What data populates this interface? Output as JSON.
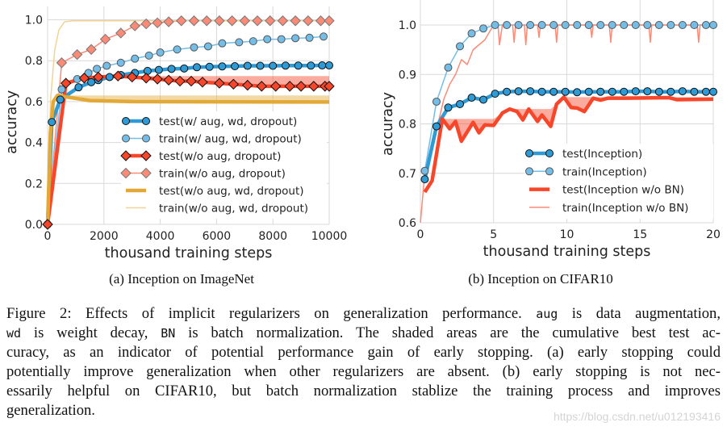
{
  "colors": {
    "blue": "#2e9bd6",
    "light_blue": "#74bde6",
    "red": "#f8462a",
    "salmon": "#fb8a76",
    "gold": "#e3a937",
    "light_gold": "#f3d394",
    "grid": "#d9d9d9"
  },
  "chart_data": [
    {
      "type": "line",
      "subcaption": "(a) Inception on ImageNet",
      "xlabel": "thousand training steps",
      "ylabel": "accuracy",
      "xlim": [
        0,
        10000
      ],
      "ylim": [
        0,
        1.0
      ],
      "xticks": [
        "0",
        "2000",
        "4000",
        "6000",
        "8000",
        "10000"
      ],
      "yticks": [
        "0.0",
        "0.2",
        "0.4",
        "0.6",
        "0.8",
        "1.0"
      ],
      "grid": true,
      "legend_position": "lower-right",
      "series": [
        {
          "name": "test(w/ aug, wd, dropout)",
          "color": "blue",
          "width": 4.5,
          "marker": "circle",
          "shade_cumulative_best": false,
          "x": [
            0,
            150,
            450,
            1100,
            1550,
            1800,
            2200,
            2600,
            3100,
            3550,
            3950,
            4400,
            4850,
            5300,
            5750,
            6200,
            6650,
            7100,
            7550,
            8000,
            8450,
            8900,
            9350,
            9750,
            10000
          ],
          "y": [
            0,
            0.5,
            0.61,
            0.67,
            0.695,
            0.705,
            0.72,
            0.73,
            0.74,
            0.75,
            0.755,
            0.76,
            0.762,
            0.768,
            0.77,
            0.772,
            0.773,
            0.775,
            0.775,
            0.775,
            0.776,
            0.776,
            0.776,
            0.777,
            0.777
          ]
        },
        {
          "name": "train(w/ aug, wd, dropout)",
          "color": "light_blue",
          "width": 1.5,
          "marker": "circle",
          "shade_cumulative_best": false,
          "x": [
            0,
            500,
            1050,
            1450,
            1750,
            2100,
            2600,
            3100,
            3600,
            4000,
            4600,
            5200,
            5700,
            6200,
            6800,
            7300,
            7800,
            8300,
            8800,
            9300,
            9800
          ],
          "y": [
            0,
            0.66,
            0.71,
            0.74,
            0.76,
            0.775,
            0.79,
            0.81,
            0.825,
            0.84,
            0.855,
            0.865,
            0.87,
            0.885,
            0.89,
            0.895,
            0.905,
            0.905,
            0.91,
            0.912,
            0.918
          ]
        },
        {
          "name": "test(w/o aug, dropout)",
          "color": "red",
          "width": 4.5,
          "marker": "diamond",
          "shade_cumulative_best": true,
          "x": [
            0,
            650,
            1300,
            1800,
            2500,
            3000,
            3500,
            3900,
            4300,
            4700,
            5100,
            5500,
            6100,
            6600,
            7100,
            7600,
            8100,
            8600,
            9000,
            9450,
            9850,
            10000
          ],
          "y": [
            0,
            0.69,
            0.715,
            0.72,
            0.725,
            0.72,
            0.715,
            0.71,
            0.705,
            0.7,
            0.7,
            0.695,
            0.69,
            0.685,
            0.68,
            0.675,
            0.675,
            0.675,
            0.675,
            0.675,
            0.675,
            0.675
          ]
        },
        {
          "name": "train(w/o aug, dropout)",
          "color": "salmon",
          "width": 1.5,
          "marker": "diamond",
          "shade_cumulative_best": false,
          "x": [
            0,
            500,
            1050,
            1550,
            2050,
            2600,
            3100,
            3500,
            3900,
            4300,
            4750,
            5200,
            5650,
            6100,
            6550,
            7000,
            7450,
            7900,
            8350,
            8800,
            9250,
            9700,
            10000
          ],
          "y": [
            0,
            0.79,
            0.83,
            0.855,
            0.905,
            0.935,
            0.97,
            0.98,
            0.985,
            0.99,
            0.995,
            0.995,
            0.995,
            0.995,
            0.995,
            0.995,
            0.995,
            0.995,
            0.995,
            0.995,
            0.995,
            0.995,
            0.995
          ]
        },
        {
          "name": "test(w/o aug, wd, dropout)",
          "color": "gold",
          "width": 4.5,
          "marker": "none",
          "shade_cumulative_best": true,
          "x": [
            0,
            100,
            200,
            350,
            800,
            1500,
            3000,
            10000
          ],
          "y": [
            0,
            0.45,
            0.6,
            0.63,
            0.62,
            0.605,
            0.6,
            0.598
          ]
        },
        {
          "name": "train(w/o aug, wd, dropout)",
          "color": "light_gold",
          "width": 1.5,
          "marker": "none",
          "shade_cumulative_best": false,
          "x": [
            0,
            100,
            250,
            400,
            600,
            900,
            10000
          ],
          "y": [
            0,
            0.6,
            0.85,
            0.95,
            0.99,
            0.995,
            0.995
          ]
        }
      ]
    },
    {
      "type": "line",
      "subcaption": "(b) Inception on CIFAR10",
      "xlabel": "thousand training steps",
      "ylabel": "accuracy",
      "xlim": [
        0,
        20
      ],
      "ylim": [
        0.6,
        1.0
      ],
      "xticks": [
        "0",
        "5",
        "10",
        "15",
        "20"
      ],
      "yticks": [
        "0.6",
        "0.7",
        "0.8",
        "0.9",
        "1.0"
      ],
      "grid": true,
      "legend_position": "lower-right",
      "series": [
        {
          "name": "test(Inception)",
          "color": "blue",
          "width": 4.5,
          "marker": "circle",
          "shade_cumulative_best": false,
          "x": [
            0.3,
            1.1,
            1.9,
            2.7,
            3.5,
            4.3,
            5.1,
            5.9,
            6.7,
            7.5,
            8.3,
            9.1,
            9.9,
            10.7,
            11.5,
            12.3,
            13.1,
            13.9,
            14.7,
            15.5,
            16.3,
            17.1,
            17.9,
            18.7,
            19.5,
            20
          ],
          "y": [
            0.688,
            0.795,
            0.833,
            0.84,
            0.853,
            0.849,
            0.861,
            0.865,
            0.866,
            0.866,
            0.865,
            0.865,
            0.865,
            0.864,
            0.865,
            0.865,
            0.865,
            0.865,
            0.866,
            0.866,
            0.865,
            0.865,
            0.866,
            0.865,
            0.865,
            0.865
          ]
        },
        {
          "name": "train(Inception)",
          "color": "light_blue",
          "width": 1.5,
          "marker": "circle",
          "shade_cumulative_best": false,
          "x": [
            0.3,
            1.1,
            1.9,
            2.7,
            3.5,
            4.3,
            5.1,
            5.9,
            6.7,
            7.5,
            8.3,
            9.1,
            9.9,
            10.7,
            11.5,
            12.3,
            13.1,
            13.9,
            14.7,
            15.5,
            16.3,
            17.1,
            17.9,
            18.7,
            19.5,
            20
          ],
          "y": [
            0.705,
            0.845,
            0.914,
            0.957,
            0.983,
            0.993,
            1.0,
            1.0,
            1.0,
            1.0,
            1.0,
            1.0,
            1.0,
            1.0,
            1.0,
            1.0,
            1.0,
            1.0,
            1.0,
            1.0,
            1.0,
            1.0,
            1.0,
            1.0,
            1.0,
            1.0
          ]
        },
        {
          "name": "test(Inception w/o BN)",
          "color": "red",
          "width": 4.5,
          "marker": "none",
          "shade_cumulative_best": true,
          "x": [
            0.3,
            0.8,
            1.5,
            2.0,
            2.4,
            2.8,
            3.6,
            4.0,
            4.4,
            5.0,
            5.6,
            6.1,
            6.6,
            7.0,
            7.4,
            8.0,
            8.3,
            8.9,
            9.3,
            9.8,
            10.3,
            10.7,
            11.2,
            11.8,
            12.3,
            12.8,
            14,
            17,
            17.5,
            20
          ],
          "y": [
            0.662,
            0.685,
            0.81,
            0.79,
            0.805,
            0.765,
            0.803,
            0.782,
            0.798,
            0.797,
            0.822,
            0.83,
            0.825,
            0.808,
            0.83,
            0.805,
            0.818,
            0.795,
            0.84,
            0.854,
            0.833,
            0.832,
            0.825,
            0.852,
            0.848,
            0.852,
            0.852,
            0.853,
            0.849,
            0.85
          ]
        },
        {
          "name": "train(Inception w/o BN)",
          "color": "salmon",
          "width": 1.5,
          "marker": "none",
          "shade_cumulative_best": false,
          "x": [
            0,
            0.3,
            0.8,
            1.2,
            1.6,
            2.0,
            2.4,
            2.8,
            3.2,
            3.6,
            4.0,
            4.4,
            4.8,
            5.0,
            5.3,
            5.4,
            5.6,
            6.3,
            6.4,
            6.5,
            7.1,
            7.2,
            7.3,
            8.0,
            8.1,
            8.2,
            9.2,
            9.3,
            9.4,
            11.6,
            11.7,
            11.8,
            12.9,
            13.0,
            13.1,
            15.6,
            15.7,
            15.8,
            18.9,
            19.0,
            19.1,
            20
          ],
          "y": [
            0.6,
            0.7,
            0.76,
            0.8,
            0.85,
            0.88,
            0.9,
            0.93,
            0.92,
            0.95,
            0.96,
            0.97,
            0.99,
            1.0,
            1.0,
            0.96,
            1.0,
            1.0,
            0.965,
            1.0,
            1.0,
            0.96,
            1.0,
            1.0,
            0.975,
            1.0,
            1.0,
            0.965,
            1.0,
            1.0,
            0.975,
            1.0,
            1.0,
            0.965,
            1.0,
            1.0,
            0.965,
            1.0,
            1.0,
            0.965,
            1.0,
            1.0
          ]
        }
      ]
    }
  ],
  "caption": {
    "l0a": "Figure 2: Effects of implicit regularizers on generalization performance. ",
    "l0c": "aug",
    "l0b": " is data augmentation,",
    "l1c1": "wd",
    "l1a": " is weight decay, ",
    "l1c2": "BN",
    "l1b": " is batch normalization.  The shaded areas are the cumulative best test ac-",
    "l2": "curacy, as an indicator of potential performance gain of early stopping.  (a) early stopping could",
    "l3": "potentially improve generalization when other regularizers are absent. (b) early stopping is not nec-",
    "l4": "essarily helpful on CIFAR10, but batch normalization stablize the training process and improves",
    "l5": "generalization."
  },
  "watermark": "https://blog.csdn.net/u012193416"
}
